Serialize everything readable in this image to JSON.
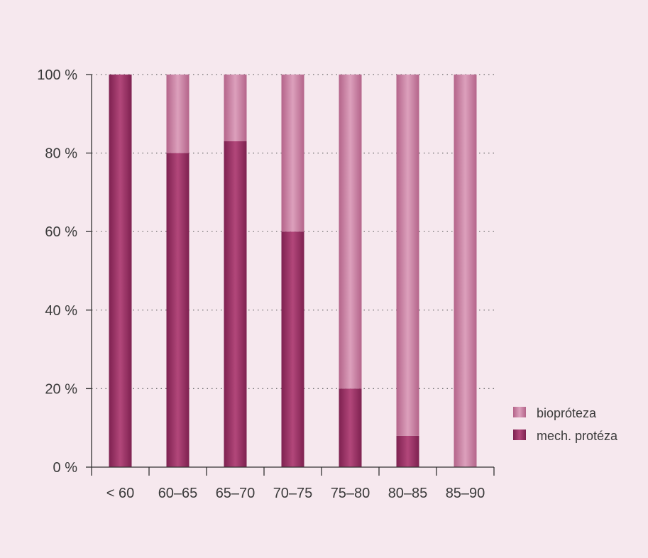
{
  "chart_data": {
    "type": "bar",
    "stacked": true,
    "title": "",
    "xlabel": "",
    "ylabel": "",
    "categories": [
      "< 60",
      "60–65",
      "65–70",
      "70–75",
      "75–80",
      "80–85",
      "85–90"
    ],
    "series": [
      {
        "name": "mech. protéza",
        "values": [
          100,
          80,
          83,
          60,
          20,
          8,
          0
        ],
        "color": "#9b3566"
      },
      {
        "name": "biopróteza",
        "values": [
          0,
          20,
          17,
          40,
          80,
          92,
          100
        ],
        "color": "#c97a9e"
      }
    ],
    "yticks": [
      0,
      20,
      40,
      60,
      80,
      100
    ],
    "ytick_labels": [
      "0 %",
      "20 %",
      "40 %",
      "60 %",
      "80 %",
      "100 %"
    ],
    "ylim": [
      0,
      100
    ],
    "grid": "horizontal dotted",
    "legend": {
      "placement": "right",
      "entries": [
        "biopróteza",
        "mech. protéza"
      ]
    }
  }
}
